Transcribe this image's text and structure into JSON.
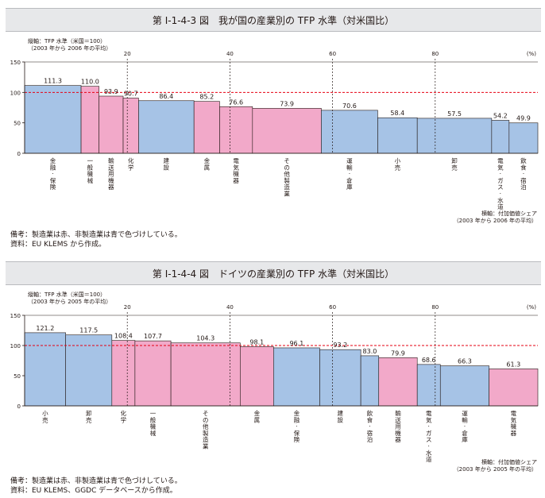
{
  "figures": [
    {
      "title": "第 I-1-4-3 図　我が国の産業別の TFP 水準（対米国比）",
      "y_axis_label_1": "縦軸：TFP 水準（米国＝100）",
      "y_axis_label_2": "（2003 年から 2006 年の平均）",
      "x_axis_label_1": "横軸：付加価値シェア",
      "x_axis_label_2": "（2003 年から 2006 年の平均）",
      "note_1": "備考：製造業は赤、非製造業は青で色づけしている。",
      "note_2": "資料：EU KLEMS から作成。"
    },
    {
      "title": "第 I-1-4-4 図　ドイツの産業別の TFP 水準（対米国比）",
      "y_axis_label_1": "縦軸：TFP 水準（米国＝100）",
      "y_axis_label_2": "（2003 年から 2005 年の平均）",
      "x_axis_label_1": "横軸：付加価値シェア",
      "x_axis_label_2": "（2003 年から 2005 年の平均）",
      "note_1": "備考：製造業は赤、非製造業は青で色づけしている。",
      "note_2": "資料：EU KLEMS、GGDC データベースから作成。"
    }
  ],
  "colors": {
    "manufacturing": "#f2a9c9",
    "non_manufacturing": "#a6c3e6",
    "reference_line": "#e60012",
    "axis": "#231815"
  },
  "chart_data": [
    {
      "type": "bar",
      "variable_width": true,
      "title": "我が国の産業別の TFP 水準（対米国比）",
      "ylabel": "TFP 水準（米国＝100）",
      "xlabel": "付加価値シェア（%）",
      "ylim": [
        0,
        150
      ],
      "yticks": [
        0,
        50,
        100,
        150
      ],
      "xlim": [
        0,
        100
      ],
      "xticks": [
        20,
        40,
        60,
        80
      ],
      "x_unit_label": "(%)",
      "reference_line": 100,
      "bars": [
        {
          "label": "金融・保険",
          "x0": 0,
          "x1": 11.0,
          "value": 111.3,
          "type": "non_manufacturing"
        },
        {
          "label": "一般機械",
          "x0": 11.0,
          "x1": 14.5,
          "value": 110.0,
          "type": "manufacturing"
        },
        {
          "label": "輸送用機器",
          "x0": 14.5,
          "x1": 19.2,
          "value": 93.9,
          "type": "manufacturing"
        },
        {
          "label": "化学",
          "x0": 19.2,
          "x1": 22.2,
          "value": 90.7,
          "type": "manufacturing"
        },
        {
          "label": "建設",
          "x0": 22.2,
          "x1": 33.0,
          "value": 86.4,
          "type": "non_manufacturing"
        },
        {
          "label": "金属",
          "x0": 33.0,
          "x1": 38.0,
          "value": 85.2,
          "type": "manufacturing"
        },
        {
          "label": "電気機器",
          "x0": 38.0,
          "x1": 44.4,
          "value": 76.6,
          "type": "manufacturing"
        },
        {
          "label": "その他製造業",
          "x0": 44.4,
          "x1": 57.8,
          "value": 73.9,
          "type": "manufacturing"
        },
        {
          "label": "運輸・倉庫",
          "x0": 57.8,
          "x1": 68.8,
          "value": 70.6,
          "type": "non_manufacturing"
        },
        {
          "label": "小売",
          "x0": 68.8,
          "x1": 76.5,
          "value": 58.4,
          "type": "non_manufacturing"
        },
        {
          "label": "卸売",
          "x0": 76.5,
          "x1": 91.0,
          "value": 57.5,
          "type": "non_manufacturing"
        },
        {
          "label": "電気・ガス・水道",
          "x0": 91.0,
          "x1": 94.4,
          "value": 54.2,
          "type": "non_manufacturing"
        },
        {
          "label": "飲食・宿泊",
          "x0": 94.4,
          "x1": 100,
          "value": 49.9,
          "type": "non_manufacturing"
        }
      ]
    },
    {
      "type": "bar",
      "variable_width": true,
      "title": "ドイツの産業別の TFP 水準（対米国比）",
      "ylabel": "TFP 水準（米国＝100）",
      "xlabel": "付加価値シェア（%）",
      "ylim": [
        0,
        150
      ],
      "yticks": [
        0,
        50,
        100,
        150
      ],
      "xlim": [
        0,
        100
      ],
      "xticks": [
        20,
        40,
        60,
        80
      ],
      "x_unit_label": "(%)",
      "reference_line": 100,
      "bars": [
        {
          "label": "小売",
          "x0": 0,
          "x1": 8.0,
          "value": 121.2,
          "type": "non_manufacturing"
        },
        {
          "label": "卸売",
          "x0": 8.0,
          "x1": 17.0,
          "value": 117.5,
          "type": "non_manufacturing"
        },
        {
          "label": "化学",
          "x0": 17.0,
          "x1": 21.5,
          "value": 108.4,
          "type": "manufacturing"
        },
        {
          "label": "一般機械",
          "x0": 21.5,
          "x1": 28.5,
          "value": 107.7,
          "type": "manufacturing"
        },
        {
          "label": "その他製造業",
          "x0": 28.5,
          "x1": 42.0,
          "value": 104.3,
          "type": "manufacturing"
        },
        {
          "label": "金属",
          "x0": 42.0,
          "x1": 48.5,
          "value": 98.1,
          "type": "manufacturing"
        },
        {
          "label": "金融・保険",
          "x0": 48.5,
          "x1": 57.5,
          "value": 96.1,
          "type": "non_manufacturing"
        },
        {
          "label": "建設",
          "x0": 57.5,
          "x1": 65.5,
          "value": 93.2,
          "type": "non_manufacturing"
        },
        {
          "label": "飲食・宿泊",
          "x0": 65.5,
          "x1": 69.0,
          "value": 83.0,
          "type": "non_manufacturing"
        },
        {
          "label": "輸送用機器",
          "x0": 69.0,
          "x1": 76.5,
          "value": 79.9,
          "type": "manufacturing"
        },
        {
          "label": "電気・ガス・水道",
          "x0": 76.5,
          "x1": 81.0,
          "value": 68.6,
          "type": "non_manufacturing"
        },
        {
          "label": "運輸・倉庫",
          "x0": 81.0,
          "x1": 90.5,
          "value": 66.3,
          "type": "non_manufacturing"
        },
        {
          "label": "電気機器",
          "x0": 90.5,
          "x1": 100,
          "value": 61.3,
          "type": "manufacturing"
        }
      ]
    }
  ]
}
